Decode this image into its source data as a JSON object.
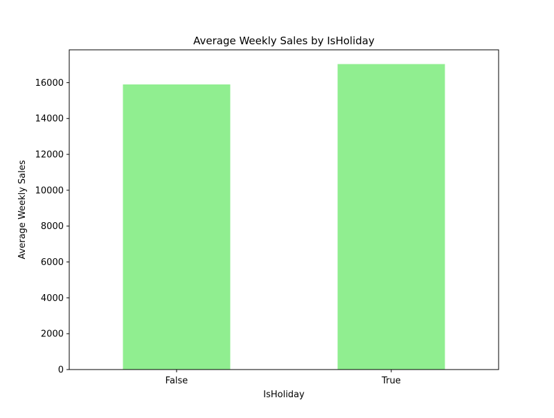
{
  "chart_data": {
    "type": "bar",
    "title": "Average Weekly Sales by IsHoliday",
    "xlabel": "IsHoliday",
    "ylabel": "Average Weekly Sales",
    "categories": [
      "False",
      "True"
    ],
    "values": [
      15900,
      17035
    ],
    "ylim": [
      0,
      17830
    ],
    "yticks": [
      0,
      2000,
      4000,
      6000,
      8000,
      10000,
      12000,
      14000,
      16000
    ],
    "bar_color": "#90ee90",
    "grid": false,
    "legend": "none"
  }
}
